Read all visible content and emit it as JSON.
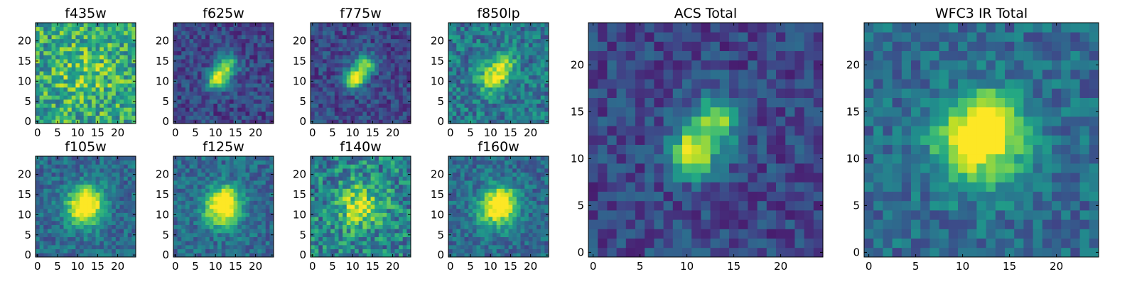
{
  "chart_data": [
    {
      "type": "heatmap",
      "title": "f435w",
      "colormap": "viridis",
      "pattern": "noisy",
      "x_ticks": [
        "0",
        "5",
        "10",
        "15",
        "20"
      ],
      "y_ticks": [
        "0",
        "5",
        "10",
        "15",
        "20"
      ],
      "xlim": [
        -0.5,
        24.5
      ],
      "ylim": [
        -0.5,
        24.5
      ]
    },
    {
      "type": "heatmap",
      "title": "f625w",
      "colormap": "viridis",
      "pattern": "acs",
      "x_ticks": [
        "0",
        "5",
        "10",
        "15",
        "20"
      ],
      "y_ticks": [
        "0",
        "5",
        "10",
        "15",
        "20"
      ],
      "xlim": [
        -0.5,
        24.5
      ],
      "ylim": [
        -0.5,
        24.5
      ]
    },
    {
      "type": "heatmap",
      "title": "f775w",
      "colormap": "viridis",
      "pattern": "acs",
      "x_ticks": [
        "0",
        "5",
        "10",
        "15",
        "20"
      ],
      "y_ticks": [
        "0",
        "5",
        "10",
        "15",
        "20"
      ],
      "xlim": [
        -0.5,
        24.5
      ],
      "ylim": [
        -0.5,
        24.5
      ]
    },
    {
      "type": "heatmap",
      "title": "f850lp",
      "colormap": "viridis",
      "pattern": "acs-broad",
      "x_ticks": [
        "0",
        "5",
        "10",
        "15",
        "20"
      ],
      "y_ticks": [
        "0",
        "5",
        "10",
        "15",
        "20"
      ],
      "xlim": [
        -0.5,
        24.5
      ],
      "ylim": [
        -0.5,
        24.5
      ]
    },
    {
      "type": "heatmap",
      "title": "f105w",
      "colormap": "viridis",
      "pattern": "ir",
      "x_ticks": [
        "0",
        "5",
        "10",
        "15",
        "20"
      ],
      "y_ticks": [
        "0",
        "5",
        "10",
        "15",
        "20"
      ],
      "xlim": [
        -0.5,
        24.5
      ],
      "ylim": [
        -0.5,
        24.5
      ]
    },
    {
      "type": "heatmap",
      "title": "f125w",
      "colormap": "viridis",
      "pattern": "ir",
      "x_ticks": [
        "0",
        "5",
        "10",
        "15",
        "20"
      ],
      "y_ticks": [
        "0",
        "5",
        "10",
        "15",
        "20"
      ],
      "xlim": [
        -0.5,
        24.5
      ],
      "ylim": [
        -0.5,
        24.5
      ]
    },
    {
      "type": "heatmap",
      "title": "f140w",
      "colormap": "viridis",
      "pattern": "ir-noisy",
      "x_ticks": [
        "0",
        "5",
        "10",
        "15",
        "20"
      ],
      "y_ticks": [
        "0",
        "5",
        "10",
        "15",
        "20"
      ],
      "xlim": [
        -0.5,
        24.5
      ],
      "ylim": [
        -0.5,
        24.5
      ]
    },
    {
      "type": "heatmap",
      "title": "f160w",
      "colormap": "viridis",
      "pattern": "ir",
      "x_ticks": [
        "0",
        "5",
        "10",
        "15",
        "20"
      ],
      "y_ticks": [
        "0",
        "5",
        "10",
        "15",
        "20"
      ],
      "xlim": [
        -0.5,
        24.5
      ],
      "ylim": [
        -0.5,
        24.5
      ]
    },
    {
      "type": "heatmap",
      "title": "ACS Total",
      "colormap": "viridis",
      "pattern": "acs",
      "x_ticks": [
        "0",
        "5",
        "10",
        "15",
        "20"
      ],
      "y_ticks": [
        "0",
        "5",
        "10",
        "15",
        "20"
      ],
      "xlim": [
        -0.5,
        24.5
      ],
      "ylim": [
        -0.5,
        24.5
      ]
    },
    {
      "type": "heatmap",
      "title": "WFC3 IR Total",
      "colormap": "viridis",
      "pattern": "ir",
      "x_ticks": [
        "0",
        "5",
        "10",
        "15",
        "20"
      ],
      "y_ticks": [
        "0",
        "5",
        "10",
        "15",
        "20"
      ],
      "xlim": [
        -0.5,
        24.5
      ],
      "ylim": [
        -0.5,
        24.5
      ]
    }
  ]
}
